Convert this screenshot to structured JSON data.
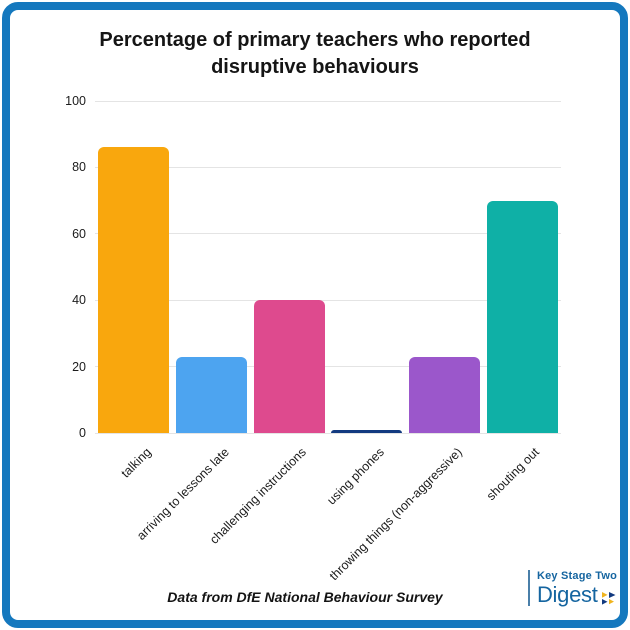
{
  "chart_data": {
    "type": "bar",
    "title": "Percentage of primary teachers who reported disruptive behaviours",
    "categories": [
      "talking",
      "arriving to lessons late",
      "challenging instructions",
      "using phones",
      "throwing things (non-aggressive)",
      "shouting out"
    ],
    "values": [
      86,
      23,
      40,
      1,
      23,
      70
    ],
    "bar_colors": [
      "#F9A70D",
      "#4DA4F0",
      "#DE4A8E",
      "#123A80",
      "#9B57CB",
      "#0FB0A6"
    ],
    "xlabel": "",
    "ylabel": "",
    "ylim": [
      0,
      100
    ],
    "yticks": [
      0,
      20,
      40,
      60,
      80,
      100
    ],
    "grid": true,
    "legend": false,
    "x_label_rotation_deg": -45
  },
  "footer": {
    "source": "Data from DfE National Behaviour Survey"
  },
  "logo": {
    "name_top": "Key Stage Two",
    "name_main": "Digest"
  },
  "colors": {
    "frame_blue": "#1478BE",
    "grid_gray": "#E4E4E4",
    "logo_blue": "#1565A0",
    "logo_gold": "#F0B41E",
    "logo_navy": "#123A80"
  }
}
